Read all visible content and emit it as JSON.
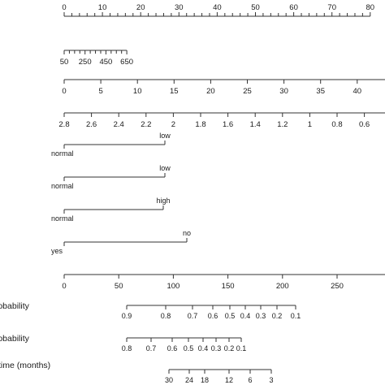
{
  "chart_data": {
    "type": "nomogram",
    "colors": {
      "line": "#333333",
      "text": "#1a1a1a",
      "background": "#ffffff"
    },
    "scales": [
      {
        "id": "points",
        "kind": "numeric",
        "ticks": [
          "0",
          "10",
          "20",
          "30",
          "40",
          "50",
          "60",
          "70",
          "80"
        ],
        "label_side": "above",
        "minor_per_major": 5
      },
      {
        "id": "var-2",
        "kind": "numeric",
        "ticks": [
          "50",
          "250",
          "450",
          "650"
        ],
        "label_side": "below",
        "minor_per_major": 4
      },
      {
        "id": "var-3",
        "kind": "numeric",
        "ticks": [
          "0",
          "5",
          "10",
          "15",
          "20",
          "25",
          "30",
          "35",
          "40"
        ],
        "label_side": "below"
      },
      {
        "id": "var-4",
        "kind": "numeric",
        "ticks": [
          "2.8",
          "2.6",
          "2.4",
          "2.2",
          "2",
          "1.8",
          "1.6",
          "1.4",
          "1.2",
          "1",
          "0.8",
          "0.6"
        ],
        "label_side": "below"
      },
      {
        "id": "cat-1",
        "kind": "categorical",
        "right_label": "low",
        "left_label": "normal"
      },
      {
        "id": "cat-2",
        "kind": "categorical",
        "right_label": "low",
        "left_label": "normal"
      },
      {
        "id": "cat-3",
        "kind": "categorical",
        "right_label": "high",
        "left_label": "normal"
      },
      {
        "id": "cat-4",
        "kind": "categorical",
        "right_label": "no",
        "left_label": "yes"
      },
      {
        "id": "total-points",
        "kind": "numeric",
        "ticks": [
          "0",
          "50",
          "100",
          "150",
          "200",
          "250"
        ],
        "label_side": "below"
      },
      {
        "id": "prob-1",
        "kind": "probability",
        "name": "probability",
        "ticks": [
          "0.9",
          "0.8",
          "0.7",
          "0.6",
          "0.5",
          "0.4",
          "0.3",
          "0.2",
          "0.1"
        ]
      },
      {
        "id": "prob-2",
        "kind": "probability",
        "name": "probability",
        "ticks": [
          "0.8",
          "0.7",
          "0.6",
          "0.5",
          "0.4",
          "0.3",
          "0.2",
          "0.1"
        ]
      },
      {
        "id": "time",
        "kind": "time",
        "name": "time (months)",
        "ticks": [
          "30",
          "24",
          "18",
          "12",
          "6",
          "3"
        ]
      }
    ]
  }
}
